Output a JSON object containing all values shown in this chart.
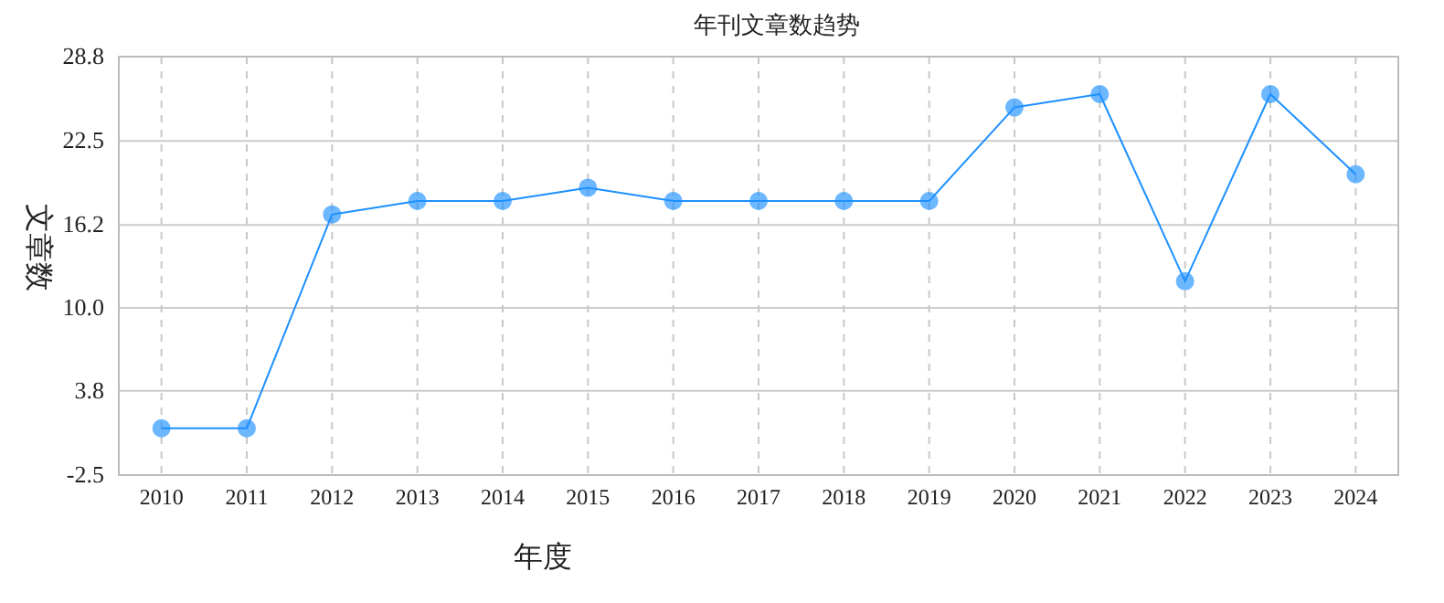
{
  "chart_data": {
    "type": "line",
    "title": "年刊文章数趋势",
    "xlabel": "年度",
    "ylabel": "文章数",
    "categories": [
      "2010",
      "2011",
      "2012",
      "2013",
      "2014",
      "2015",
      "2016",
      "2017",
      "2018",
      "2019",
      "2020",
      "2021",
      "2022",
      "2023",
      "2024"
    ],
    "series": [
      {
        "color": "#1e90ff",
        "values": [
          1,
          1,
          17,
          18,
          18,
          19,
          18,
          18,
          18,
          18,
          25,
          26,
          12,
          26,
          20
        ]
      }
    ],
    "ylim": [
      -2.5,
      28.8
    ],
    "yticks": [
      -2.5,
      3.8,
      {
        "value": 10,
        "label": "10.0"
      },
      16.2,
      22.5,
      28.8
    ],
    "grid": true,
    "marker": "circle",
    "line_style": "solid"
  }
}
